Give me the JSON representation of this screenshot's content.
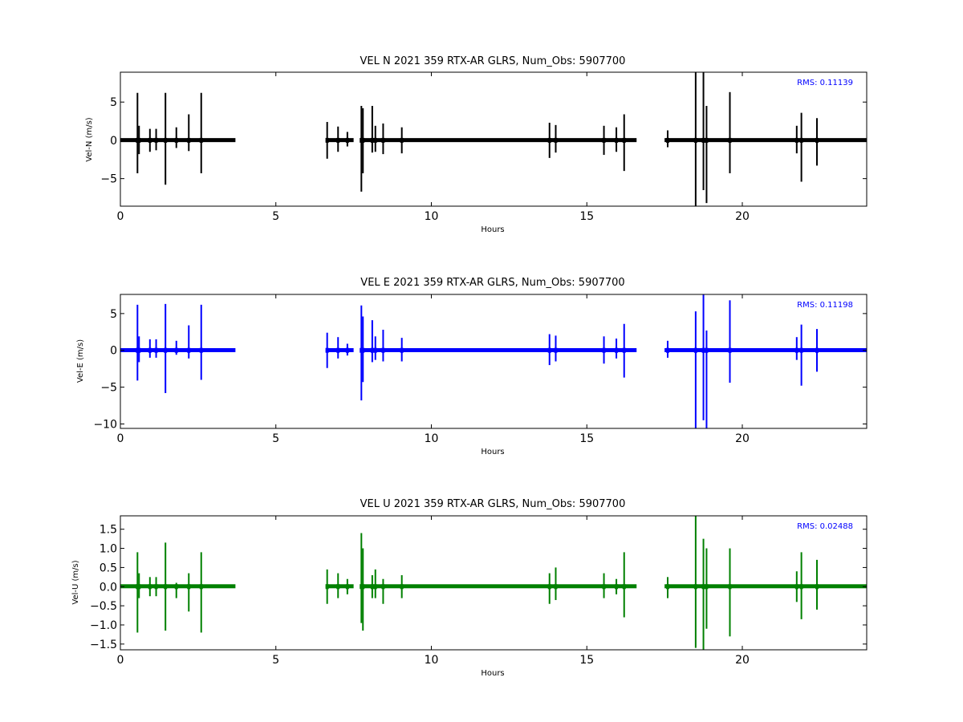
{
  "chart_data": [
    {
      "type": "line",
      "title": "VEL N 2021 359 RTX-AR  GLRS, Num_Obs: 5907700",
      "xlabel": "Hours",
      "ylabel": "Vel-N (m/s)",
      "xlim": [
        0,
        24
      ],
      "ylim": [
        -8.6,
        8.9
      ],
      "xticks": [
        "0",
        "5",
        "10",
        "15",
        "20"
      ],
      "yticks": [
        "5",
        "0",
        "−5"
      ],
      "ytick_values": [
        5,
        0,
        -5
      ],
      "annotation": "RMS:  0.11139",
      "color": "#000000",
      "grid": false,
      "baseline_band": [
        0.0,
        0.06
      ],
      "data_gaps": [
        [
          3.7,
          6.6
        ],
        [
          7.5,
          7.7
        ],
        [
          16.6,
          17.5
        ]
      ],
      "spikes": [
        {
          "x": 0.55,
          "y": [
            -4.3,
            6.2
          ]
        },
        {
          "x": 0.6,
          "y": [
            -1.8,
            1.9
          ]
        },
        {
          "x": 0.95,
          "y": [
            -1.5,
            1.5
          ]
        },
        {
          "x": 1.15,
          "y": [
            -1.3,
            1.5
          ]
        },
        {
          "x": 1.45,
          "y": [
            -5.8,
            6.2
          ]
        },
        {
          "x": 1.8,
          "y": [
            -1.0,
            1.7
          ]
        },
        {
          "x": 2.2,
          "y": [
            -1.4,
            3.4
          ]
        },
        {
          "x": 2.6,
          "y": [
            -4.3,
            6.2
          ]
        },
        {
          "x": 6.65,
          "y": [
            -2.4,
            2.4
          ]
        },
        {
          "x": 7.0,
          "y": [
            -1.5,
            1.8
          ]
        },
        {
          "x": 7.3,
          "y": [
            -0.8,
            1.1
          ]
        },
        {
          "x": 7.75,
          "y": [
            -6.7,
            4.5
          ]
        },
        {
          "x": 7.8,
          "y": [
            -4.3,
            4.2
          ]
        },
        {
          "x": 8.1,
          "y": [
            -1.6,
            4.5
          ]
        },
        {
          "x": 8.2,
          "y": [
            -1.5,
            1.9
          ]
        },
        {
          "x": 8.45,
          "y": [
            -1.8,
            2.2
          ]
        },
        {
          "x": 9.05,
          "y": [
            -1.7,
            1.7
          ]
        },
        {
          "x": 13.8,
          "y": [
            -2.3,
            2.3
          ]
        },
        {
          "x": 14.0,
          "y": [
            -1.6,
            2.0
          ]
        },
        {
          "x": 15.55,
          "y": [
            -1.9,
            1.9
          ]
        },
        {
          "x": 15.95,
          "y": [
            -1.5,
            1.7
          ]
        },
        {
          "x": 16.2,
          "y": [
            -4.0,
            3.4
          ]
        },
        {
          "x": 17.6,
          "y": [
            -0.9,
            1.3
          ]
        },
        {
          "x": 18.5,
          "y": [
            -8.6,
            8.9
          ]
        },
        {
          "x": 18.75,
          "y": [
            -6.5,
            8.9
          ]
        },
        {
          "x": 18.85,
          "y": [
            -8.2,
            4.5
          ]
        },
        {
          "x": 19.6,
          "y": [
            -4.3,
            6.3
          ]
        },
        {
          "x": 21.75,
          "y": [
            -1.7,
            1.9
          ]
        },
        {
          "x": 21.9,
          "y": [
            -5.4,
            3.6
          ]
        },
        {
          "x": 22.4,
          "y": [
            -3.3,
            2.9
          ]
        }
      ]
    },
    {
      "type": "line",
      "title": "VEL E 2021 359 RTX-AR  GLRS, Num_Obs: 5907700",
      "xlabel": "Hours",
      "ylabel": "Vel-E (m/s)",
      "xlim": [
        0,
        24
      ],
      "ylim": [
        -10.6,
        7.6
      ],
      "xticks": [
        "0",
        "5",
        "10",
        "15",
        "20"
      ],
      "yticks": [
        "5",
        "0",
        "−5",
        "−10"
      ],
      "ytick_values": [
        5,
        0,
        -5,
        -10
      ],
      "annotation": "RMS:  0.11198",
      "color": "#0000ff",
      "grid": false,
      "baseline_band": [
        0.0,
        0.06
      ],
      "data_gaps": [
        [
          3.7,
          6.6
        ],
        [
          7.5,
          7.7
        ],
        [
          16.6,
          17.5
        ]
      ],
      "spikes": [
        {
          "x": 0.55,
          "y": [
            -4.1,
            6.2
          ]
        },
        {
          "x": 0.6,
          "y": [
            -1.6,
            1.9
          ]
        },
        {
          "x": 0.95,
          "y": [
            -1.0,
            1.5
          ]
        },
        {
          "x": 1.15,
          "y": [
            -1.0,
            1.5
          ]
        },
        {
          "x": 1.45,
          "y": [
            -5.8,
            6.3
          ]
        },
        {
          "x": 1.8,
          "y": [
            -0.6,
            1.3
          ]
        },
        {
          "x": 2.2,
          "y": [
            -1.1,
            3.4
          ]
        },
        {
          "x": 2.6,
          "y": [
            -4.0,
            6.2
          ]
        },
        {
          "x": 6.65,
          "y": [
            -2.4,
            2.4
          ]
        },
        {
          "x": 7.0,
          "y": [
            -1.1,
            1.8
          ]
        },
        {
          "x": 7.3,
          "y": [
            -0.7,
            0.9
          ]
        },
        {
          "x": 7.75,
          "y": [
            -6.8,
            6.1
          ]
        },
        {
          "x": 7.8,
          "y": [
            -4.3,
            4.6
          ]
        },
        {
          "x": 8.1,
          "y": [
            -1.6,
            4.1
          ]
        },
        {
          "x": 8.2,
          "y": [
            -1.3,
            1.9
          ]
        },
        {
          "x": 8.45,
          "y": [
            -1.5,
            2.8
          ]
        },
        {
          "x": 9.05,
          "y": [
            -1.5,
            1.7
          ]
        },
        {
          "x": 13.8,
          "y": [
            -2.0,
            2.2
          ]
        },
        {
          "x": 14.0,
          "y": [
            -1.5,
            2.0
          ]
        },
        {
          "x": 15.55,
          "y": [
            -1.8,
            1.9
          ]
        },
        {
          "x": 15.95,
          "y": [
            -1.1,
            1.6
          ]
        },
        {
          "x": 16.2,
          "y": [
            -3.7,
            3.6
          ]
        },
        {
          "x": 17.6,
          "y": [
            -1.0,
            1.3
          ]
        },
        {
          "x": 18.5,
          "y": [
            -10.6,
            5.3
          ]
        },
        {
          "x": 18.75,
          "y": [
            -9.5,
            7.6
          ]
        },
        {
          "x": 18.85,
          "y": [
            -10.6,
            2.7
          ]
        },
        {
          "x": 19.6,
          "y": [
            -4.4,
            6.8
          ]
        },
        {
          "x": 21.75,
          "y": [
            -1.3,
            1.8
          ]
        },
        {
          "x": 21.9,
          "y": [
            -4.8,
            3.5
          ]
        },
        {
          "x": 22.4,
          "y": [
            -2.9,
            2.9
          ]
        }
      ]
    },
    {
      "type": "line",
      "title": "VEL U 2021 359 RTX-AR  GLRS, Num_Obs: 5907700",
      "xlabel": "Hours",
      "ylabel": "Vel-U (m/s)",
      "xlim": [
        0,
        24
      ],
      "ylim": [
        -1.65,
        1.85
      ],
      "xticks": [
        "0",
        "5",
        "10",
        "15",
        "20"
      ],
      "yticks": [
        "1.5",
        "1.0",
        "0.5",
        "0.0",
        "−0.5",
        "−1.0",
        "−1.5"
      ],
      "ytick_values": [
        1.5,
        1.0,
        0.5,
        0.0,
        -0.5,
        -1.0,
        -1.5
      ],
      "annotation": "RMS:  0.02488",
      "color": "#008000",
      "grid": false,
      "baseline_band": [
        -0.03,
        0.05
      ],
      "data_gaps": [
        [
          3.7,
          6.6
        ],
        [
          7.5,
          7.7
        ],
        [
          16.6,
          17.5
        ]
      ],
      "spikes": [
        {
          "x": 0.55,
          "y": [
            -1.2,
            0.9
          ]
        },
        {
          "x": 0.6,
          "y": [
            -0.3,
            0.35
          ]
        },
        {
          "x": 0.95,
          "y": [
            -0.25,
            0.25
          ]
        },
        {
          "x": 1.15,
          "y": [
            -0.25,
            0.25
          ]
        },
        {
          "x": 1.45,
          "y": [
            -1.15,
            1.15
          ]
        },
        {
          "x": 1.8,
          "y": [
            -0.3,
            0.1
          ]
        },
        {
          "x": 2.2,
          "y": [
            -0.65,
            0.35
          ]
        },
        {
          "x": 2.6,
          "y": [
            -1.2,
            0.9
          ]
        },
        {
          "x": 6.65,
          "y": [
            -0.45,
            0.45
          ]
        },
        {
          "x": 7.0,
          "y": [
            -0.3,
            0.35
          ]
        },
        {
          "x": 7.3,
          "y": [
            -0.2,
            0.2
          ]
        },
        {
          "x": 7.75,
          "y": [
            -0.95,
            1.4
          ]
        },
        {
          "x": 7.8,
          "y": [
            -1.15,
            1.0
          ]
        },
        {
          "x": 8.1,
          "y": [
            -0.3,
            0.3
          ]
        },
        {
          "x": 8.2,
          "y": [
            -0.3,
            0.45
          ]
        },
        {
          "x": 8.45,
          "y": [
            -0.45,
            0.2
          ]
        },
        {
          "x": 9.05,
          "y": [
            -0.3,
            0.3
          ]
        },
        {
          "x": 13.8,
          "y": [
            -0.45,
            0.35
          ]
        },
        {
          "x": 14.0,
          "y": [
            -0.35,
            0.5
          ]
        },
        {
          "x": 15.55,
          "y": [
            -0.3,
            0.35
          ]
        },
        {
          "x": 15.95,
          "y": [
            -0.2,
            0.2
          ]
        },
        {
          "x": 16.2,
          "y": [
            -0.8,
            0.9
          ]
        },
        {
          "x": 17.6,
          "y": [
            -0.3,
            0.25
          ]
        },
        {
          "x": 18.5,
          "y": [
            -1.6,
            1.85
          ]
        },
        {
          "x": 18.75,
          "y": [
            -1.65,
            1.25
          ]
        },
        {
          "x": 18.85,
          "y": [
            -1.1,
            1.0
          ]
        },
        {
          "x": 19.6,
          "y": [
            -1.3,
            1.0
          ]
        },
        {
          "x": 21.75,
          "y": [
            -0.4,
            0.4
          ]
        },
        {
          "x": 21.9,
          "y": [
            -0.85,
            0.9
          ]
        },
        {
          "x": 22.4,
          "y": [
            -0.6,
            0.7
          ]
        }
      ]
    }
  ]
}
